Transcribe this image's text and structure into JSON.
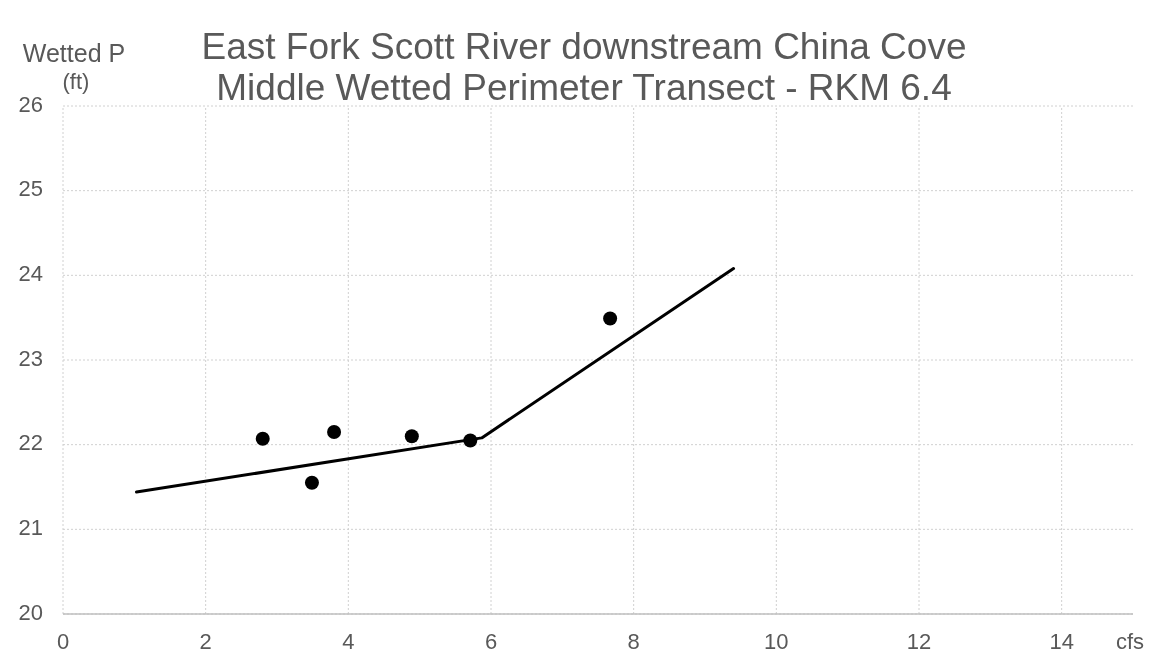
{
  "chart_data": {
    "type": "scatter",
    "title": "East Fork Scott River downstream China Cove\nMiddle Wetted Perimeter Transect - RKM 6.4",
    "xlabel": "cfs",
    "ylabel": "Wetted P\n(ft)",
    "x": [
      2.8,
      3.49,
      3.8,
      4.89,
      5.71,
      7.67
    ],
    "series": [
      {
        "color": "#000000",
        "marker": "circle",
        "values": [
          22.07,
          21.55,
          22.15,
          22.1,
          22.05,
          23.49
        ]
      },
      {
        "type": "line",
        "color": "#000000",
        "x": [
          1.03,
          5.87,
          9.4
        ],
        "values": [
          21.44,
          22.08,
          24.08
        ]
      }
    ],
    "xlim": [
      0,
      15
    ],
    "xticks": [
      0,
      2,
      4,
      6,
      8,
      10,
      12,
      14
    ],
    "ylim": [
      20,
      26
    ],
    "yticks": [
      20,
      21,
      22,
      23,
      24,
      25,
      26
    ],
    "grid": true
  }
}
